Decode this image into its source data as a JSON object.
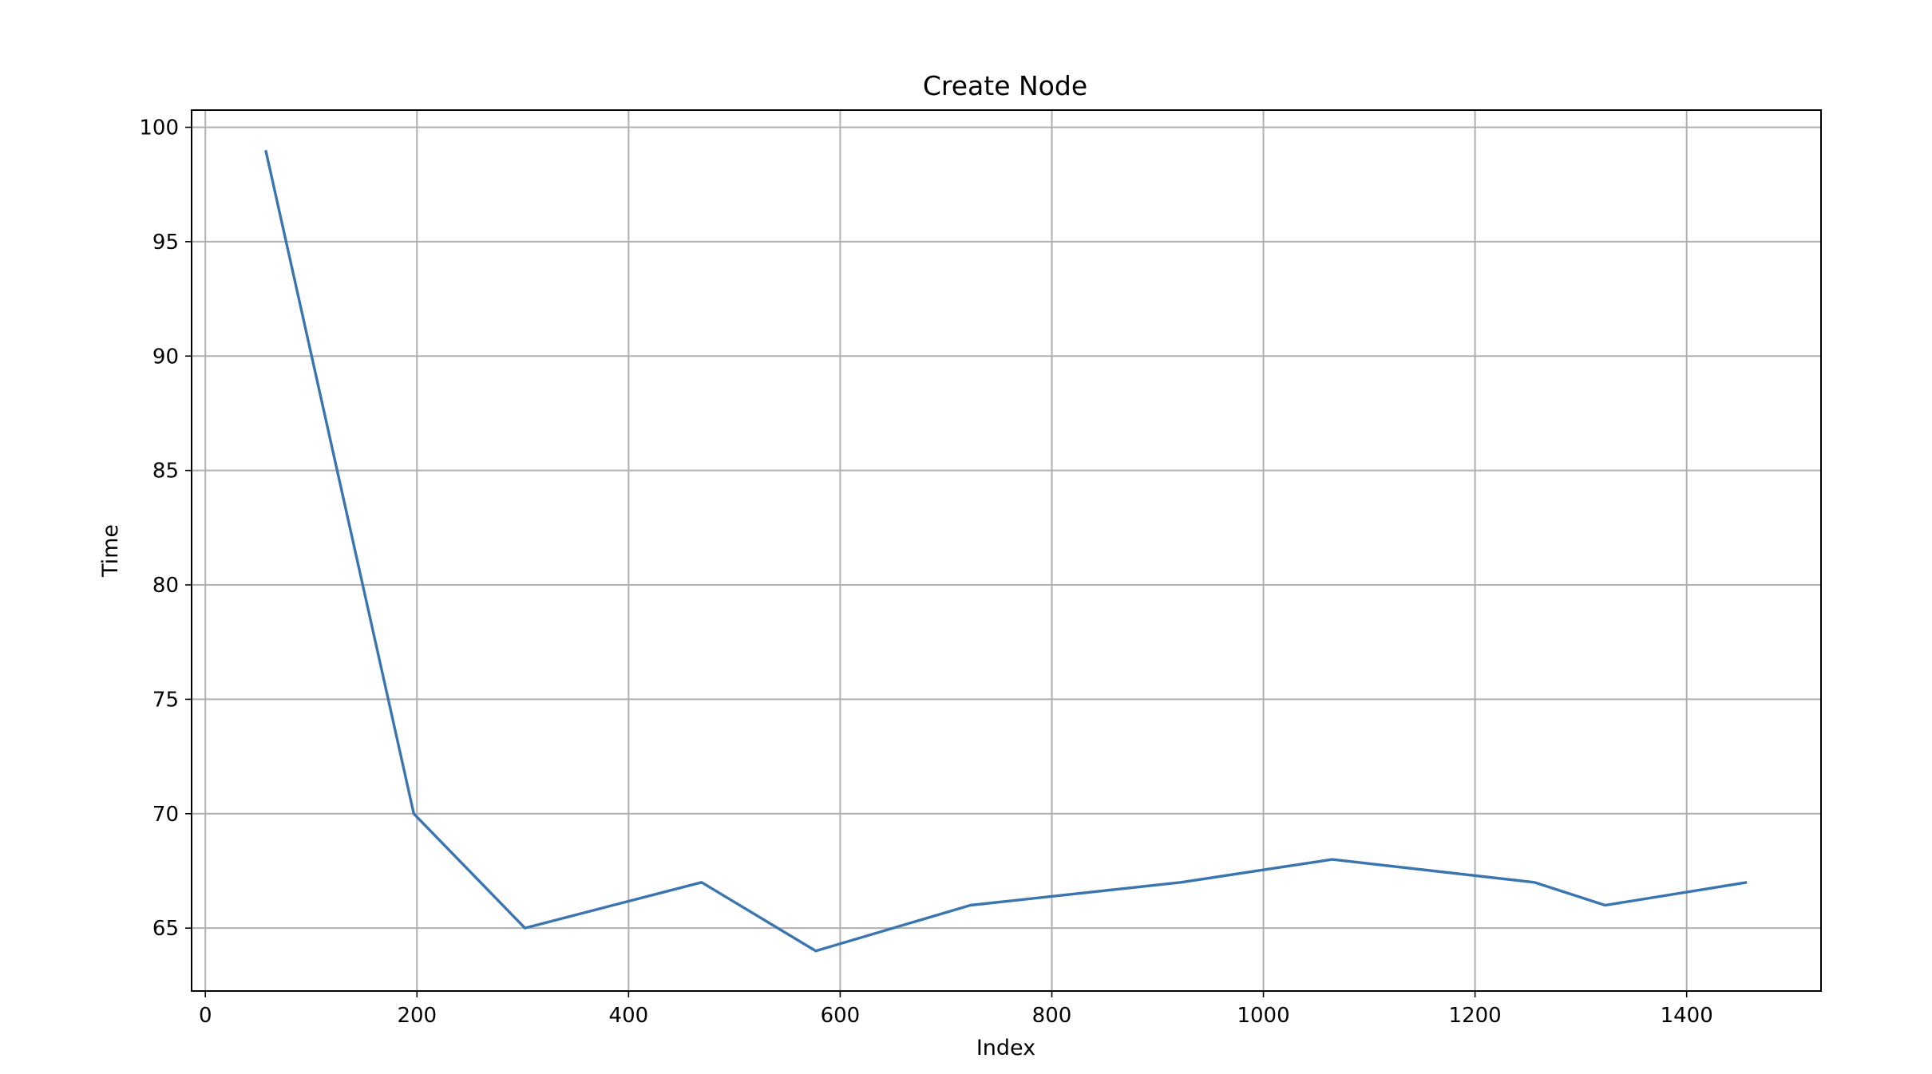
{
  "chart_data": {
    "type": "line",
    "title": "Create Node",
    "xlabel": "Index",
    "ylabel": "Time",
    "xlim": [
      -13,
      1527
    ],
    "ylim": [
      62.25,
      100.75
    ],
    "x_ticks": [
      0,
      200,
      400,
      600,
      800,
      1000,
      1200,
      1400
    ],
    "y_ticks": [
      65,
      70,
      75,
      80,
      85,
      90,
      95,
      100
    ],
    "grid": true,
    "legend": "none",
    "series": [
      {
        "color": "#3a75b0",
        "x": [
          57,
          197,
          302,
          469,
          577,
          723,
          922,
          1065,
          1256,
          1323,
          1457
        ],
        "y": [
          99,
          70,
          65,
          67,
          64,
          66,
          67,
          68,
          67,
          66,
          67
        ]
      }
    ]
  }
}
